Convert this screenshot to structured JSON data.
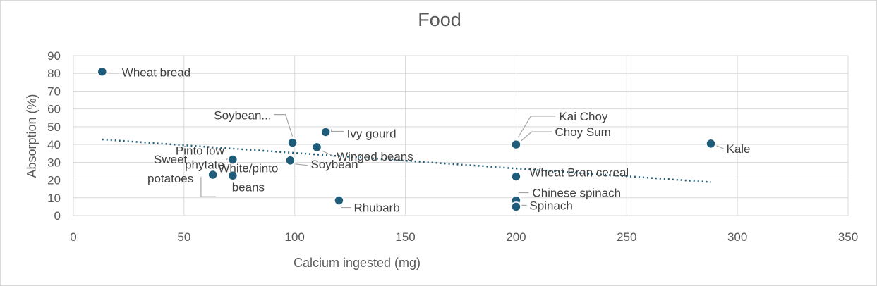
{
  "chart_data": {
    "type": "scatter",
    "title": "Food",
    "xlabel": "Calcium ingested (mg)",
    "ylabel": "Absorption (%)",
    "xlim": [
      0,
      350
    ],
    "ylim": [
      0,
      90
    ],
    "x_ticks": [
      0,
      50,
      100,
      150,
      200,
      250,
      300,
      350
    ],
    "y_ticks": [
      0,
      10,
      20,
      30,
      40,
      50,
      60,
      70,
      80,
      90
    ],
    "grid": true,
    "legend": "none",
    "trendline": "linear",
    "colors": {
      "points": "#1f5c7a",
      "trendline": "#1f5c7a",
      "grid": "#d9d9d9"
    },
    "points": [
      {
        "label": "Wheat bread",
        "x": 13,
        "y": 81
      },
      {
        "label": [
          "Soybean..."
        ],
        "x": 99,
        "y": 41
      },
      {
        "label": "Ivy gourd",
        "x": 114,
        "y": 47
      },
      {
        "label": "Winged beans",
        "x": 110,
        "y": 38.5
      },
      {
        "label": "Soybean",
        "x": 98,
        "y": 31
      },
      {
        "label": [
          "Pinto low",
          "phytate"
        ],
        "x": 72,
        "y": 31.5
      },
      {
        "label": [
          "Sweet",
          "potatoes"
        ],
        "x": 63,
        "y": 23
      },
      {
        "label": [
          "White/pinto",
          "beans"
        ],
        "x": 72,
        "y": 22.5
      },
      {
        "label": "Rhubarb",
        "x": 120,
        "y": 8.5
      },
      {
        "label": "Kai Choy",
        "x": 200,
        "y": 40.5
      },
      {
        "label": "Choy Sum",
        "x": 200,
        "y": 40
      },
      {
        "label": "Wheat Bran cereal",
        "x": 200,
        "y": 22
      },
      {
        "label": "Chinese spinach",
        "x": 200,
        "y": 8.5
      },
      {
        "label": "Spinach",
        "x": 200,
        "y": 5
      },
      {
        "label": "Kale",
        "x": 288,
        "y": 40.5
      }
    ]
  }
}
